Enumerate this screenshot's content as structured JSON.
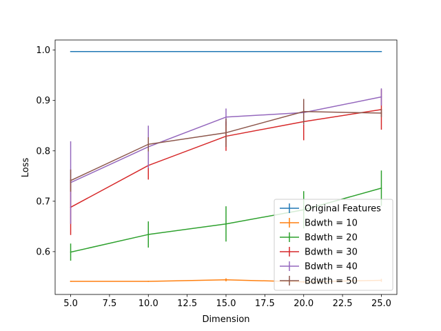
{
  "chart_data": {
    "type": "line",
    "title": "",
    "xlabel": "Dimension",
    "ylabel": "Loss",
    "xlim": [
      4.0,
      26.0
    ],
    "ylim": [
      0.515,
      1.02
    ],
    "x": [
      5,
      10,
      15,
      20,
      25
    ],
    "x_ticks": [
      "5.0",
      "7.5",
      "10.0",
      "12.5",
      "15.0",
      "17.5",
      "20.0",
      "22.5",
      "25.0"
    ],
    "y_ticks": [
      "0.6",
      "0.7",
      "0.8",
      "0.9",
      "1.0"
    ],
    "grid": false,
    "legend_position": "lower-right",
    "series": [
      {
        "name": "Original Features",
        "color": "#1f77b4",
        "values": [
          0.997,
          0.997,
          0.997,
          0.997,
          0.997
        ],
        "errors": [
          0,
          0,
          0,
          0,
          0
        ]
      },
      {
        "name": "Bdwth = 10",
        "color": "#ff7f0e",
        "values": [
          0.541,
          0.541,
          0.544,
          0.54,
          0.543
        ],
        "errors": [
          0.001,
          0.001,
          0.003,
          0.002,
          0.003
        ]
      },
      {
        "name": "Bdwth = 20",
        "color": "#2ca02c",
        "values": [
          0.599,
          0.634,
          0.655,
          0.683,
          0.726
        ],
        "errors": [
          0.017,
          0.026,
          0.035,
          0.037,
          0.035
        ]
      },
      {
        "name": "Bdwth = 30",
        "color": "#d62728",
        "values": [
          0.688,
          0.771,
          0.829,
          0.858,
          0.882
        ],
        "errors": [
          0.055,
          0.028,
          0.029,
          0.037,
          0.04
        ]
      },
      {
        "name": "Bdwth = 40",
        "color": "#9467bd",
        "values": [
          0.737,
          0.808,
          0.867,
          0.876,
          0.907
        ],
        "errors": [
          0.082,
          0.042,
          0.017,
          0.024,
          0.017
        ]
      },
      {
        "name": "Bdwth = 50",
        "color": "#8c564b",
        "values": [
          0.741,
          0.813,
          0.836,
          0.878,
          0.875
        ],
        "errors": [
          0.022,
          0.014,
          0.028,
          0.025,
          0.008
        ]
      }
    ]
  }
}
